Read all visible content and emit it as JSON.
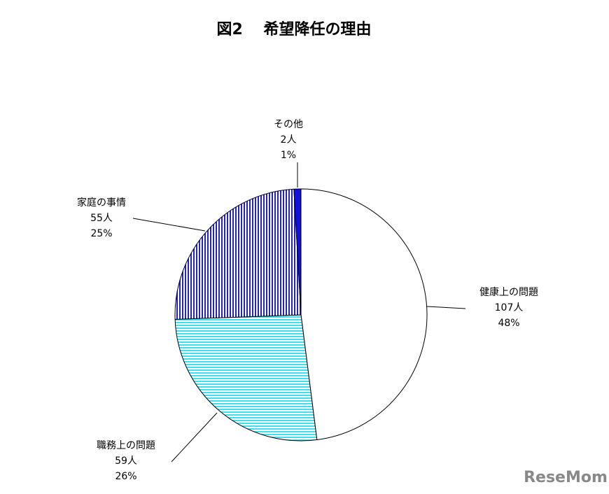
{
  "chart_data": {
    "type": "pie",
    "title": "図2　 希望降任の理由",
    "categories": [
      "健康上の問題",
      "職務上の問題",
      "家庭の事情",
      "その他"
    ],
    "values": [
      107,
      59,
      55,
      2
    ],
    "value_labels": [
      "107人",
      "59人",
      "55人",
      "2人"
    ],
    "percent_labels": [
      "48%",
      "26%",
      "25%",
      "1%"
    ],
    "colors": [
      "#ffffff",
      "#3ee0ee",
      "#2222c8",
      "#1010e0"
    ],
    "patterns": [
      "none",
      "horizontal",
      "vertical",
      "none"
    ]
  },
  "watermark": "ReseMom"
}
